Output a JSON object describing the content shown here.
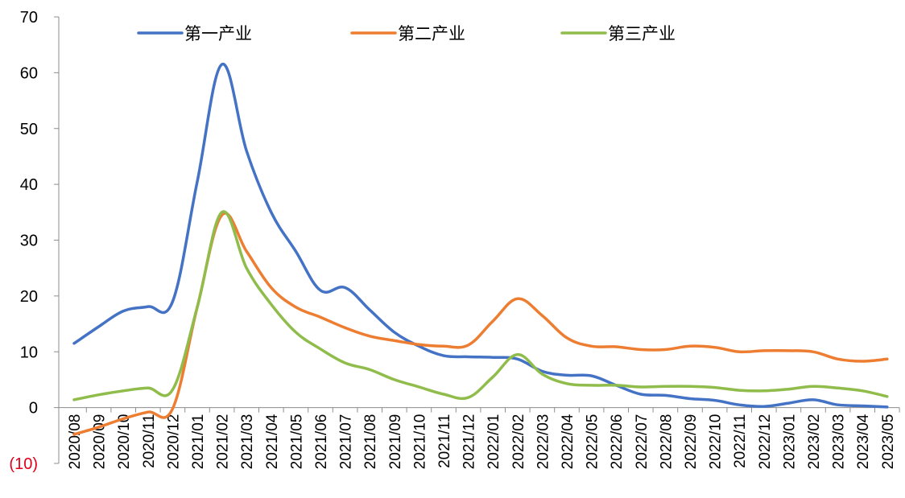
{
  "chart_data": {
    "type": "line",
    "title": "",
    "xlabel": "",
    "ylabel": "",
    "ylim": [
      -10,
      70
    ],
    "yticks": [
      -10,
      0,
      10,
      20,
      30,
      40,
      50,
      60,
      70
    ],
    "ytick_labels": [
      "(10)",
      "0",
      "10",
      "20",
      "30",
      "40",
      "50",
      "60",
      "70"
    ],
    "negative_tick_color": "#e0001b",
    "grid": false,
    "legend_position": "top",
    "categories": [
      "2020/08",
      "2020/09",
      "2020/10",
      "2020/11",
      "2020/12",
      "2021/01",
      "2021/02",
      "2021/03",
      "2021/04",
      "2021/05",
      "2021/06",
      "2021/07",
      "2021/08",
      "2021/09",
      "2021/10",
      "2021/11",
      "2021/12",
      "2022/01",
      "2022/02",
      "2022/03",
      "2022/04",
      "2022/05",
      "2022/06",
      "2022/07",
      "2022/08",
      "2022/09",
      "2022/10",
      "2022/11",
      "2022/12",
      "2023/01",
      "2023/02",
      "2023/03",
      "2023/04",
      "2023/05"
    ],
    "series": [
      {
        "name": "第一产业",
        "color": "#4472c4",
        "values": [
          11.5,
          14.5,
          17.3,
          18.1,
          19.0,
          40.5,
          61.5,
          46.0,
          35.0,
          28.0,
          21.0,
          21.5,
          17.5,
          13.5,
          11.0,
          9.3,
          9.1,
          9.0,
          8.7,
          6.5,
          5.8,
          5.7,
          4.0,
          2.4,
          2.2,
          1.6,
          1.3,
          0.5,
          0.2,
          0.8,
          1.4,
          0.5,
          0.3,
          0.1
        ]
      },
      {
        "name": "第二产业",
        "color": "#ed7d31",
        "values": [
          -4.8,
          -3.5,
          -2.0,
          -0.8,
          -0.2,
          18.0,
          34.5,
          28.0,
          21.5,
          18.0,
          16.2,
          14.3,
          12.8,
          12.0,
          11.3,
          11.0,
          11.2,
          15.5,
          19.5,
          16.5,
          12.5,
          11.0,
          10.9,
          10.4,
          10.4,
          11.0,
          10.8,
          10.0,
          10.2,
          10.2,
          10.0,
          8.7,
          8.3,
          8.7
        ]
      },
      {
        "name": "第三产业",
        "color": "#8fbc4b",
        "values": [
          1.4,
          2.3,
          3.0,
          3.5,
          3.2,
          18.0,
          35.0,
          25.0,
          18.5,
          13.5,
          10.5,
          8.0,
          6.8,
          5.0,
          3.7,
          2.4,
          1.8,
          5.5,
          9.5,
          6.0,
          4.3,
          4.0,
          4.0,
          3.7,
          3.8,
          3.8,
          3.6,
          3.1,
          3.0,
          3.3,
          3.8,
          3.5,
          3.0,
          2.0
        ]
      }
    ]
  }
}
